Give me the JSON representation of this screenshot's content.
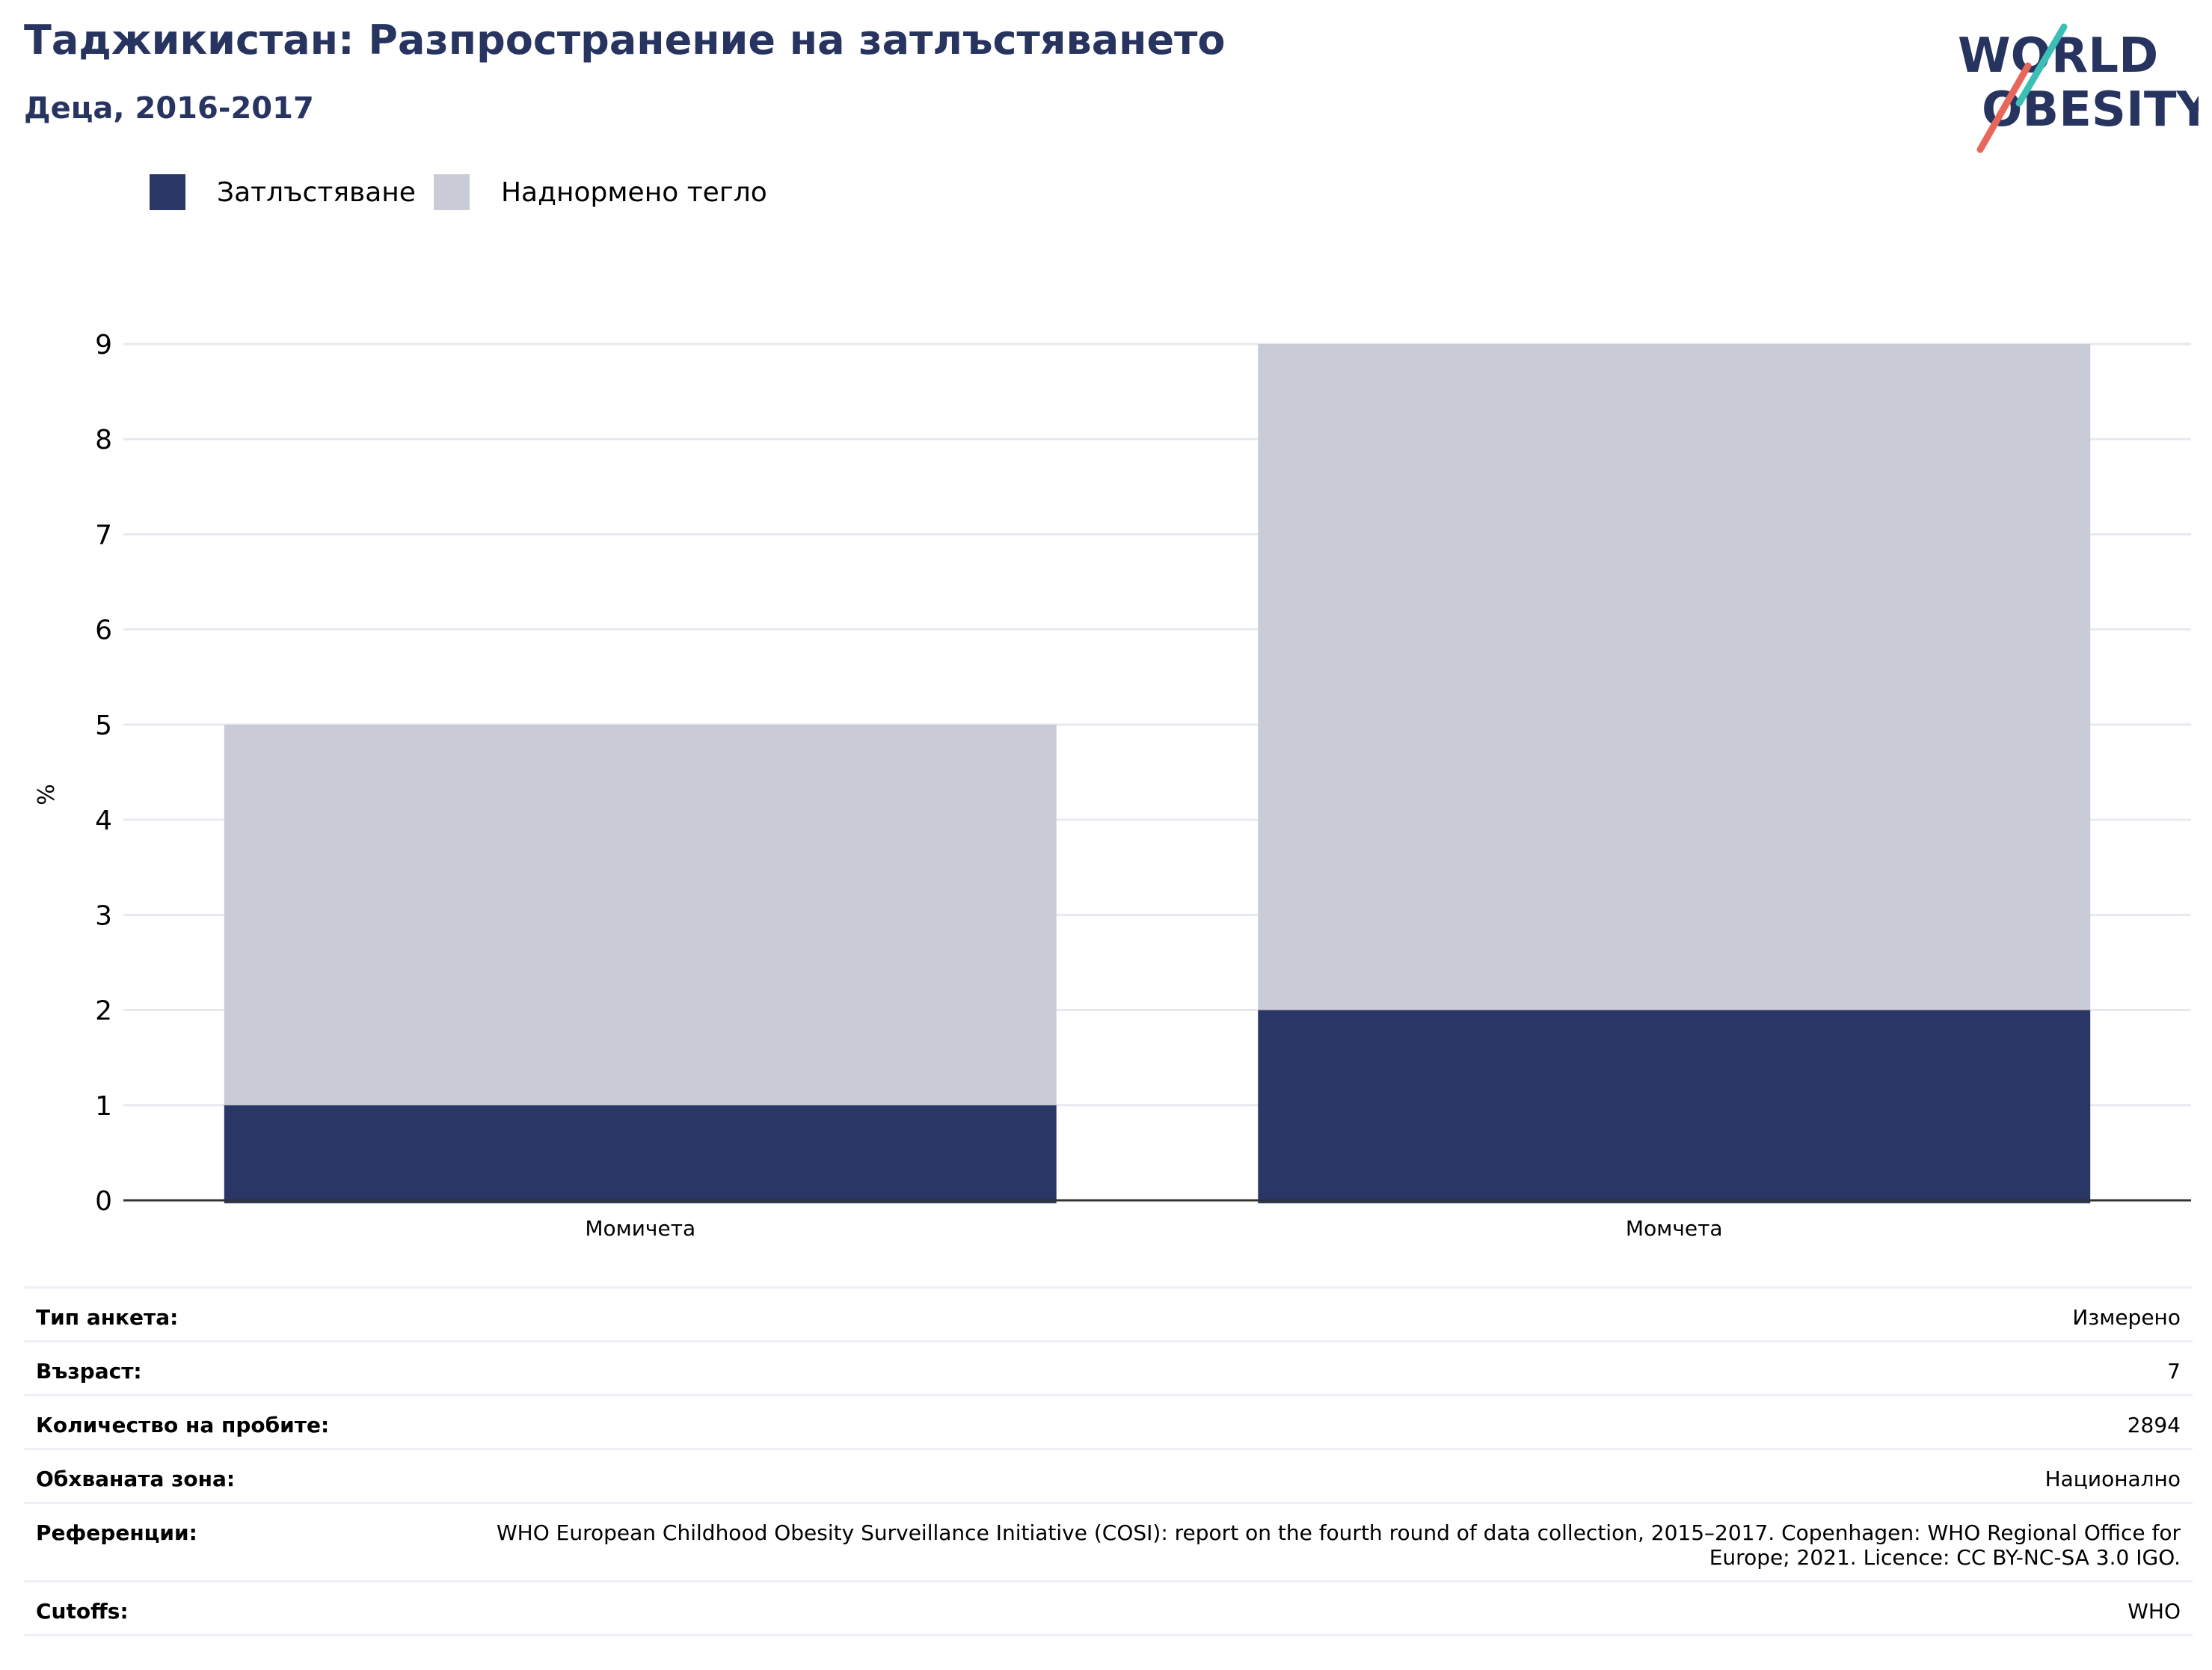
{
  "header": {
    "title": "Таджикистан: Разпространение на затлъстяването",
    "subtitle": "Деца, 2016-2017"
  },
  "logo": {
    "line1": "WORLD",
    "line2": "OBESITY"
  },
  "colors": {
    "obesity": "#2a3665",
    "overweight": "#c9cbd6",
    "title": "#283460",
    "grid": "#e8e9ef",
    "axis": "#333333"
  },
  "legend": [
    {
      "label": "Затлъстяване",
      "color": "#2a3665"
    },
    {
      "label": "Наднормено тегло",
      "color": "#c9cbd6"
    }
  ],
  "chart_data": {
    "type": "bar",
    "stacked": true,
    "categories": [
      "Момичета",
      "Момчета"
    ],
    "series": [
      {
        "name": "Затлъстяване",
        "values": [
          1,
          2
        ]
      },
      {
        "name": "Наднормено тегло",
        "values": [
          4,
          7
        ]
      }
    ],
    "ylabel": "%",
    "ylim": [
      0,
      9
    ],
    "yticks": [
      0,
      1,
      2,
      3,
      4,
      5,
      6,
      7,
      8,
      9
    ],
    "grid": true,
    "legend_position": "top-left"
  },
  "details": [
    {
      "key": "Тип анкета:",
      "value": "Измерено"
    },
    {
      "key": "Възраст:",
      "value": "7"
    },
    {
      "key": "Количество на пробите:",
      "value": "2894"
    },
    {
      "key": "Обхваната зона:",
      "value": "Национално"
    },
    {
      "key": "Референции:",
      "value": "WHO European Childhood Obesity Surveillance Initiative (COSI): report on the fourth round of data collection, 2015–2017. Copenhagen: WHO Regional Office for Europe; 2021. Licence: CC BY-NC-SA 3.0 IGO."
    },
    {
      "key": "Cutoffs:",
      "value": "WHO"
    }
  ]
}
